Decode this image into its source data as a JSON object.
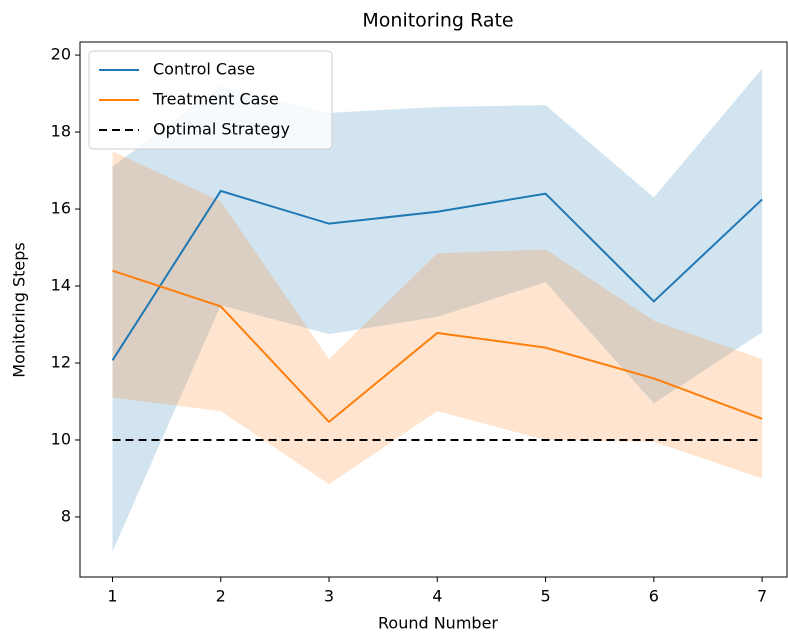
{
  "chart_data": {
    "type": "line",
    "title": "Monitoring Rate",
    "xlabel": "Round Number",
    "ylabel": "Monitoring Steps",
    "x": [
      1,
      2,
      3,
      4,
      5,
      6,
      7
    ],
    "series": [
      {
        "name": "Control Case",
        "color": "#1f77b4",
        "values": [
          12.07,
          16.47,
          15.62,
          15.93,
          16.4,
          13.6,
          16.25
        ],
        "lower": [
          7.1,
          13.5,
          12.75,
          13.2,
          14.1,
          10.95,
          12.8
        ],
        "upper": [
          17.1,
          19.2,
          18.5,
          18.65,
          18.7,
          16.3,
          19.65
        ]
      },
      {
        "name": "Treatment Case",
        "color": "#ff7f0e",
        "values": [
          14.4,
          13.47,
          10.47,
          12.78,
          12.4,
          11.6,
          10.55
        ],
        "lower": [
          11.1,
          10.75,
          8.85,
          10.75,
          10.0,
          9.95,
          9.0
        ],
        "upper": [
          17.5,
          16.2,
          12.1,
          14.85,
          14.95,
          13.1,
          12.1
        ]
      },
      {
        "name": "Optimal Strategy",
        "color": "#000000",
        "dashed": true,
        "values": [
          10,
          10,
          10,
          10,
          10,
          10,
          10
        ]
      }
    ],
    "xlim": [
      0.7,
      7.23
    ],
    "ylim": [
      6.44,
      20.34
    ],
    "xticks": [
      1,
      2,
      3,
      4,
      5,
      6,
      7
    ],
    "yticks": [
      8,
      10,
      12,
      14,
      16,
      18,
      20
    ],
    "legend": "upper left"
  }
}
